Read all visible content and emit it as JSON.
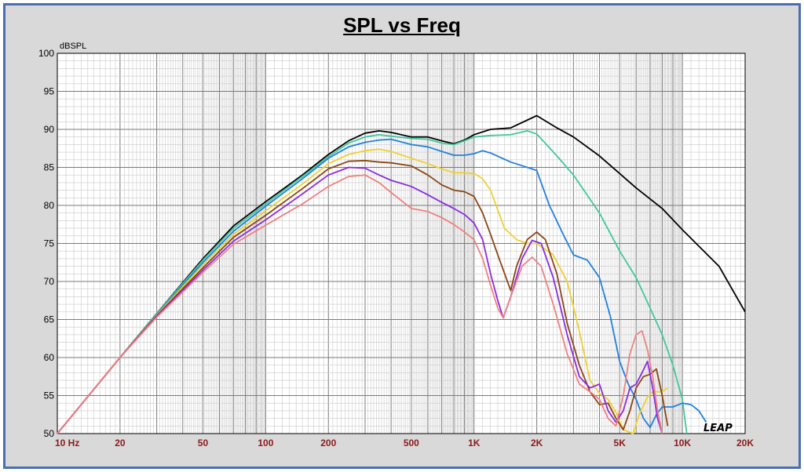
{
  "chart_data": {
    "type": "line",
    "title": "SPL vs Freq",
    "ylabel": "dBSPL",
    "xlabel": "",
    "xscale": "log",
    "xlim": [
      10,
      20000
    ],
    "ylim": [
      50,
      100
    ],
    "grid": true,
    "brand": "LEAP",
    "yticks": [
      "50",
      "55",
      "60",
      "65",
      "70",
      "75",
      "80",
      "85",
      "90",
      "95",
      "100"
    ],
    "xticks": [
      {
        "v": 10,
        "label": "10  Hz"
      },
      {
        "v": 20,
        "label": "20"
      },
      {
        "v": 50,
        "label": "50"
      },
      {
        "v": 100,
        "label": "100"
      },
      {
        "v": 200,
        "label": "200"
      },
      {
        "v": 500,
        "label": "500"
      },
      {
        "v": 1000,
        "label": "1K"
      },
      {
        "v": 2000,
        "label": "2K"
      },
      {
        "v": 5000,
        "label": "5K"
      },
      {
        "v": 10000,
        "label": "10K"
      },
      {
        "v": 20000,
        "label": "20K"
      }
    ],
    "series": [
      {
        "color": "#000000",
        "points": [
          [
            10,
            50
          ],
          [
            20,
            60
          ],
          [
            30,
            65.8
          ],
          [
            50,
            73
          ],
          [
            70,
            77.3
          ],
          [
            100,
            80.5
          ],
          [
            150,
            84
          ],
          [
            200,
            86.7
          ],
          [
            250,
            88.5
          ],
          [
            300,
            89.5
          ],
          [
            350,
            89.8
          ],
          [
            400,
            89.6
          ],
          [
            500,
            89
          ],
          [
            600,
            89
          ],
          [
            700,
            88.5
          ],
          [
            800,
            88.1
          ],
          [
            900,
            88.6
          ],
          [
            1000,
            89.3
          ],
          [
            1200,
            90
          ],
          [
            1500,
            90.2
          ],
          [
            2000,
            91.8
          ],
          [
            2500,
            90.2
          ],
          [
            3000,
            89
          ],
          [
            4000,
            86.5
          ],
          [
            5000,
            84.2
          ],
          [
            6000,
            82.3
          ],
          [
            8000,
            79.6
          ],
          [
            10000,
            76.8
          ],
          [
            15000,
            72
          ],
          [
            20000,
            66
          ]
        ]
      },
      {
        "color": "#40c8a0",
        "points": [
          [
            10,
            50
          ],
          [
            20,
            60
          ],
          [
            30,
            65.8
          ],
          [
            50,
            72.8
          ],
          [
            70,
            77
          ],
          [
            100,
            80.2
          ],
          [
            150,
            83.8
          ],
          [
            200,
            86.4
          ],
          [
            250,
            88.2
          ],
          [
            300,
            89
          ],
          [
            350,
            89.3
          ],
          [
            400,
            89.1
          ],
          [
            500,
            88.8
          ],
          [
            600,
            88.7
          ],
          [
            700,
            88.2
          ],
          [
            800,
            88
          ],
          [
            900,
            88.5
          ],
          [
            1000,
            89
          ],
          [
            1200,
            89.2
          ],
          [
            1500,
            89.3
          ],
          [
            1800,
            89.8
          ],
          [
            2000,
            89.4
          ],
          [
            2500,
            86.5
          ],
          [
            3000,
            84
          ],
          [
            4000,
            79
          ],
          [
            5000,
            74
          ],
          [
            6000,
            70.5
          ],
          [
            7000,
            66.5
          ],
          [
            8000,
            63
          ],
          [
            9000,
            59
          ],
          [
            10000,
            54.5
          ],
          [
            10500,
            50
          ]
        ]
      },
      {
        "color": "#2080e0",
        "points": [
          [
            10,
            50
          ],
          [
            20,
            60
          ],
          [
            30,
            65.7
          ],
          [
            50,
            72.5
          ],
          [
            70,
            76.6
          ],
          [
            100,
            79.9
          ],
          [
            150,
            83.5
          ],
          [
            200,
            86.2
          ],
          [
            250,
            87.7
          ],
          [
            300,
            88.3
          ],
          [
            350,
            88.6
          ],
          [
            400,
            88.7
          ],
          [
            500,
            88
          ],
          [
            600,
            87.7
          ],
          [
            700,
            87.1
          ],
          [
            800,
            86.6
          ],
          [
            900,
            86.6
          ],
          [
            1000,
            86.8
          ],
          [
            1100,
            87.2
          ],
          [
            1200,
            86.9
          ],
          [
            1500,
            85.7
          ],
          [
            2000,
            84.6
          ],
          [
            2300,
            80
          ],
          [
            2700,
            76
          ],
          [
            3000,
            73.5
          ],
          [
            3500,
            72.8
          ],
          [
            4000,
            70.5
          ],
          [
            4500,
            65.5
          ],
          [
            5000,
            59.5
          ],
          [
            5500,
            56.5
          ],
          [
            6000,
            54.5
          ],
          [
            6500,
            52
          ],
          [
            7000,
            50.8
          ],
          [
            7500,
            52.5
          ],
          [
            8000,
            53.5
          ],
          [
            9000,
            53.5
          ],
          [
            10000,
            54
          ],
          [
            11000,
            53.8
          ],
          [
            12000,
            53
          ],
          [
            13000,
            51.5
          ]
        ]
      },
      {
        "color": "#f0d030",
        "points": [
          [
            10,
            50
          ],
          [
            20,
            60
          ],
          [
            30,
            65.6
          ],
          [
            50,
            72.2
          ],
          [
            70,
            76.2
          ],
          [
            100,
            79.3
          ],
          [
            150,
            82.8
          ],
          [
            200,
            85.5
          ],
          [
            250,
            86.7
          ],
          [
            300,
            87.2
          ],
          [
            350,
            87.4
          ],
          [
            400,
            87.1
          ],
          [
            500,
            86.2
          ],
          [
            600,
            85.5
          ],
          [
            700,
            84.8
          ],
          [
            800,
            84.3
          ],
          [
            900,
            84.3
          ],
          [
            1000,
            84.2
          ],
          [
            1100,
            83.5
          ],
          [
            1200,
            82
          ],
          [
            1400,
            77
          ],
          [
            1600,
            75.5
          ],
          [
            1800,
            75
          ],
          [
            2000,
            75
          ],
          [
            2400,
            73.5
          ],
          [
            2800,
            70
          ],
          [
            3200,
            63.5
          ],
          [
            3600,
            57
          ],
          [
            4000,
            55.3
          ],
          [
            4400,
            54.5
          ],
          [
            4800,
            52.8
          ],
          [
            5200,
            50.5
          ],
          [
            5800,
            50
          ],
          [
            6200,
            52.5
          ],
          [
            6800,
            54.8
          ],
          [
            7200,
            55.5
          ],
          [
            8000,
            55.5
          ],
          [
            8500,
            56
          ]
        ]
      },
      {
        "color": "#8b4513",
        "points": [
          [
            10,
            50
          ],
          [
            20,
            60
          ],
          [
            30,
            65.5
          ],
          [
            50,
            71.8
          ],
          [
            70,
            75.8
          ],
          [
            100,
            78.7
          ],
          [
            150,
            82.2
          ],
          [
            200,
            84.8
          ],
          [
            250,
            85.8
          ],
          [
            300,
            85.9
          ],
          [
            350,
            85.7
          ],
          [
            400,
            85.6
          ],
          [
            500,
            85.2
          ],
          [
            600,
            84
          ],
          [
            700,
            82.7
          ],
          [
            800,
            82
          ],
          [
            900,
            81.8
          ],
          [
            1000,
            81.2
          ],
          [
            1100,
            79
          ],
          [
            1200,
            76.2
          ],
          [
            1300,
            73.5
          ],
          [
            1500,
            68.8
          ],
          [
            1600,
            72
          ],
          [
            1800,
            75.5
          ],
          [
            2000,
            76.5
          ],
          [
            2200,
            75.5
          ],
          [
            2500,
            71
          ],
          [
            2800,
            64.5
          ],
          [
            3200,
            59
          ],
          [
            3600,
            55.5
          ],
          [
            4000,
            53.8
          ],
          [
            4400,
            54
          ],
          [
            4800,
            52
          ],
          [
            5200,
            50.5
          ],
          [
            5600,
            53
          ],
          [
            6000,
            56
          ],
          [
            6500,
            57.5
          ],
          [
            7000,
            57.8
          ],
          [
            7500,
            58.5
          ],
          [
            8000,
            55
          ],
          [
            8500,
            51
          ]
        ]
      },
      {
        "color": "#8a2be2",
        "points": [
          [
            10,
            50
          ],
          [
            20,
            60
          ],
          [
            30,
            65.4
          ],
          [
            50,
            71.5
          ],
          [
            70,
            75.3
          ],
          [
            100,
            78.1
          ],
          [
            150,
            81.5
          ],
          [
            200,
            84
          ],
          [
            250,
            85
          ],
          [
            300,
            84.9
          ],
          [
            350,
            84
          ],
          [
            400,
            83.3
          ],
          [
            500,
            82.5
          ],
          [
            600,
            81.4
          ],
          [
            700,
            80.4
          ],
          [
            800,
            79.6
          ],
          [
            900,
            78.8
          ],
          [
            1000,
            77.7
          ],
          [
            1100,
            75.5
          ],
          [
            1200,
            71
          ],
          [
            1300,
            67.5
          ],
          [
            1380,
            65.2
          ],
          [
            1500,
            68
          ],
          [
            1700,
            73
          ],
          [
            1900,
            75.4
          ],
          [
            2100,
            75
          ],
          [
            2400,
            70.5
          ],
          [
            2800,
            63
          ],
          [
            3200,
            57.5
          ],
          [
            3600,
            56
          ],
          [
            4000,
            56.5
          ],
          [
            4400,
            53
          ],
          [
            4800,
            51.5
          ],
          [
            5200,
            53
          ],
          [
            5600,
            56
          ],
          [
            6000,
            56.5
          ],
          [
            6400,
            58
          ],
          [
            6800,
            59.5
          ],
          [
            7200,
            56
          ],
          [
            7600,
            52
          ],
          [
            8000,
            50
          ]
        ]
      },
      {
        "color": "#f08080",
        "points": [
          [
            10,
            50
          ],
          [
            20,
            60
          ],
          [
            30,
            65.3
          ],
          [
            50,
            71.2
          ],
          [
            70,
            74.9
          ],
          [
            100,
            77.4
          ],
          [
            150,
            80.2
          ],
          [
            200,
            82.5
          ],
          [
            250,
            83.8
          ],
          [
            300,
            84
          ],
          [
            350,
            83
          ],
          [
            400,
            81.7
          ],
          [
            500,
            79.6
          ],
          [
            600,
            79.2
          ],
          [
            700,
            78.4
          ],
          [
            800,
            77.5
          ],
          [
            900,
            76.5
          ],
          [
            1000,
            75.5
          ],
          [
            1100,
            73
          ],
          [
            1200,
            69.5
          ],
          [
            1300,
            66.5
          ],
          [
            1380,
            65.2
          ],
          [
            1500,
            68
          ],
          [
            1700,
            72
          ],
          [
            1900,
            73.2
          ],
          [
            2100,
            72
          ],
          [
            2400,
            67
          ],
          [
            2800,
            60.5
          ],
          [
            3200,
            56.5
          ],
          [
            3600,
            55.5
          ],
          [
            4000,
            54.5
          ],
          [
            4400,
            52
          ],
          [
            4800,
            51
          ],
          [
            5200,
            55
          ],
          [
            5600,
            60.5
          ],
          [
            6000,
            63
          ],
          [
            6400,
            63.5
          ],
          [
            6800,
            61
          ],
          [
            7200,
            57.5
          ],
          [
            7600,
            53
          ],
          [
            8000,
            50
          ]
        ]
      }
    ]
  }
}
